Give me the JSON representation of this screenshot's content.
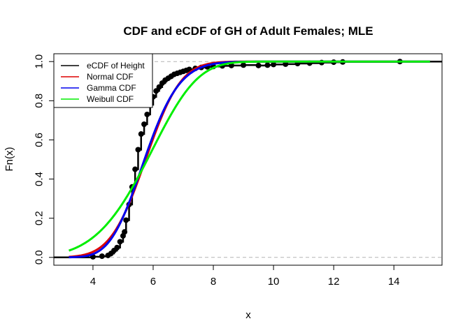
{
  "chart_data": {
    "type": "line",
    "title": "CDF and eCDF of GH of Adult Females; MLE",
    "xlabel": "x",
    "ylabel": "Fn(x)",
    "xlim": [
      2.7,
      15.6
    ],
    "ylim": [
      -0.04,
      1.04
    ],
    "x_ticks": [
      4,
      6,
      8,
      10,
      12,
      14
    ],
    "y_ticks": [
      0.0,
      0.2,
      0.4,
      0.6,
      0.8,
      1.0
    ],
    "reference_lines_y": [
      0,
      1
    ],
    "legend": {
      "placement": "top-left",
      "entries": [
        {
          "label": "eCDF of Height",
          "color": "#000000"
        },
        {
          "label": "Normal CDF",
          "color": "#dd0000"
        },
        {
          "label": "Gamma CDF",
          "color": "#0000ee"
        },
        {
          "label": "Weibull CDF",
          "color": "#00ee00"
        }
      ]
    },
    "ecdf_points": {
      "name": "eCDF of Height",
      "color": "#000000",
      "x": [
        4.0,
        4.3,
        4.5,
        4.6,
        4.7,
        4.8,
        4.9,
        5.0,
        5.05,
        5.1,
        5.2,
        5.3,
        5.4,
        5.5,
        5.6,
        5.7,
        5.8,
        5.9,
        6.0,
        6.1,
        6.2,
        6.3,
        6.4,
        6.5,
        6.6,
        6.7,
        6.8,
        6.9,
        7.0,
        7.1,
        7.2,
        7.4,
        7.6,
        7.8,
        8.0,
        8.3,
        8.6,
        9.0,
        9.5,
        9.8,
        10.0,
        10.4,
        10.8,
        11.2,
        11.6,
        12.0,
        12.3,
        14.2
      ],
      "y": [
        0.003,
        0.006,
        0.01,
        0.02,
        0.035,
        0.05,
        0.08,
        0.11,
        0.13,
        0.19,
        0.27,
        0.36,
        0.45,
        0.55,
        0.63,
        0.68,
        0.73,
        0.78,
        0.82,
        0.85,
        0.87,
        0.89,
        0.905,
        0.915,
        0.925,
        0.935,
        0.94,
        0.945,
        0.95,
        0.955,
        0.96,
        0.965,
        0.97,
        0.973,
        0.975,
        0.978,
        0.98,
        0.982,
        0.98,
        0.982,
        0.985,
        0.987,
        0.99,
        0.992,
        0.995,
        0.997,
        0.998,
        1.0
      ]
    },
    "series": [
      {
        "name": "Normal CDF",
        "color": "#dd0000",
        "dist": "normal",
        "mean": 5.75,
        "sd": 0.92,
        "x_range": [
          3.2,
          15.2
        ]
      },
      {
        "name": "Gamma CDF",
        "color": "#0000ee",
        "dist": "gamma",
        "shape": 40,
        "scale": 0.144,
        "x_range": [
          3.2,
          15.2
        ]
      },
      {
        "name": "Weibull CDF",
        "color": "#00ee00",
        "dist": "weibull",
        "shape": 5.0,
        "scale": 6.25,
        "x_range": [
          3.2,
          15.2
        ]
      }
    ]
  }
}
